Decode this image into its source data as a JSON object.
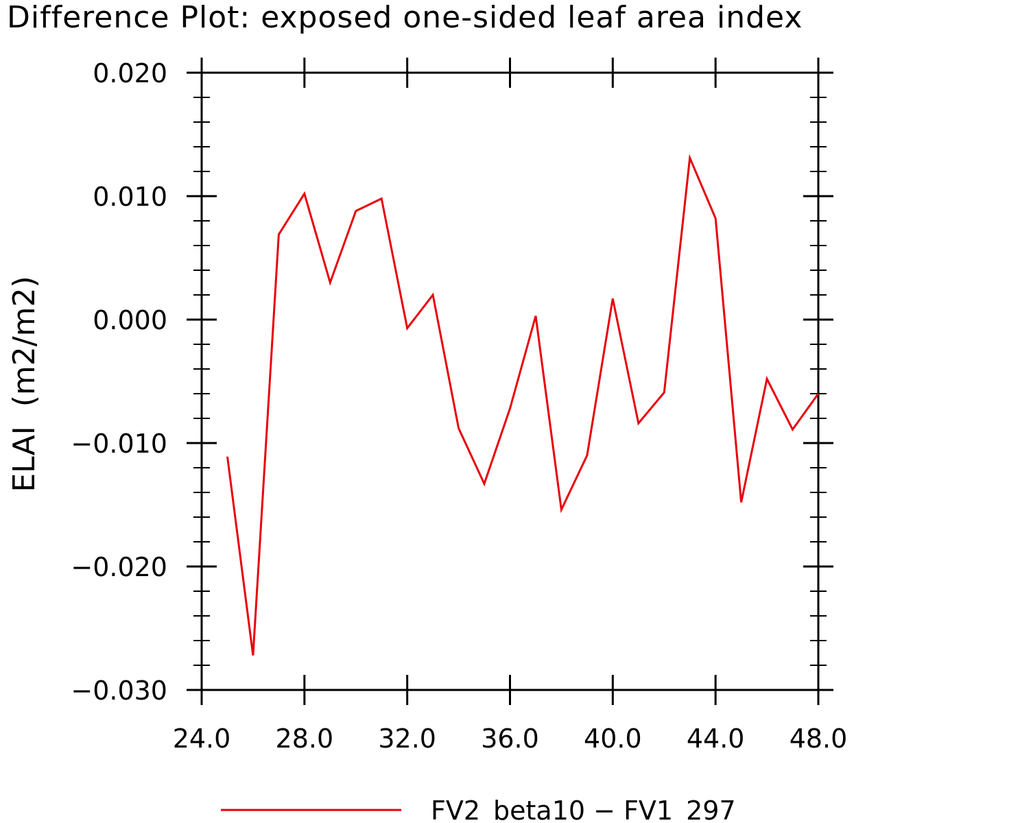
{
  "chart_data": {
    "type": "line",
    "title": "Difference Plot: exposed one-sided leaf area index",
    "ylabel": "ELAI  (m2/m2)",
    "xlabel": "",
    "xlim": [
      24,
      48
    ],
    "ylim": [
      -0.03,
      0.02
    ],
    "x_ticks": [
      "24.0",
      "28.0",
      "32.0",
      "36.0",
      "40.0",
      "44.0",
      "48.0"
    ],
    "y_ticks": [
      "0.020",
      "0.010",
      "0.000",
      "−0.010",
      "−0.020",
      "−0.030"
    ],
    "x_tick_values": [
      24,
      28,
      32,
      36,
      40,
      44,
      48
    ],
    "y_tick_values": [
      0.02,
      0.01,
      0.0,
      -0.01,
      -0.02,
      -0.03
    ],
    "series": [
      {
        "name": "FV2_beta10 − FV1_297",
        "color": "#e8000b",
        "x": [
          25,
          26,
          27,
          28,
          29,
          30,
          31,
          32,
          33,
          34,
          35,
          36,
          37,
          38,
          39,
          40,
          41,
          42,
          43,
          44,
          45,
          46,
          47,
          48
        ],
        "values": [
          -0.0111,
          -0.0272,
          0.0069,
          0.0102,
          0.003,
          0.0088,
          0.0098,
          -0.0007,
          0.002,
          -0.0088,
          -0.0133,
          -0.0072,
          0.0003,
          -0.0154,
          -0.011,
          0.0017,
          -0.0084,
          -0.0059,
          0.0131,
          0.0082,
          -0.0148,
          -0.0048,
          -0.0089,
          -0.006
        ]
      }
    ],
    "legend_position": "bottom-center",
    "grid": false
  }
}
